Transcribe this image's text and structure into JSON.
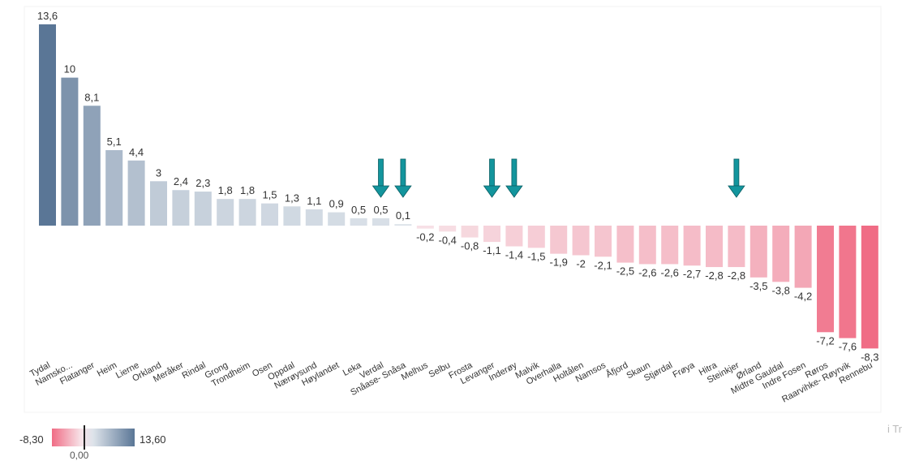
{
  "chart_data": {
    "type": "bar",
    "categories": [
      "Tydal",
      "Namsko...",
      "Flatanger",
      "Heim",
      "Lierne",
      "Orkland",
      "Meråker",
      "Rindal",
      "Grong",
      "Trondheim",
      "Osen",
      "Oppdal",
      "Nærøysund",
      "Høylandet",
      "Leka",
      "Verdal",
      "Snåase- Snåsa",
      "Melhus",
      "Selbu",
      "Frosta",
      "Levanger",
      "Inderøy",
      "Malvik",
      "Overhalla",
      "Holtålen",
      "Namsos",
      "Åfjord",
      "Skaun",
      "Stjørdal",
      "Frøya",
      "Hitra",
      "Steinkjer",
      "Ørland",
      "Midtre Gauldal",
      "Indre Fosen",
      "Røros",
      "Raarvihke- Røyrvik",
      "Rennebu"
    ],
    "values": [
      13.6,
      10,
      8.1,
      5.1,
      4.4,
      3,
      2.4,
      2.3,
      1.8,
      1.8,
      1.5,
      1.3,
      1.1,
      0.9,
      0.5,
      0.5,
      0.1,
      -0.2,
      -0.4,
      -0.8,
      -1.1,
      -1.4,
      -1.5,
      -1.9,
      -2,
      -2.1,
      -2.5,
      -2.6,
      -2.6,
      -2.7,
      -2.8,
      -2.8,
      -3.5,
      -3.8,
      -4.2,
      -7.2,
      -7.6,
      -8.3
    ],
    "value_labels": [
      "13,6",
      "10",
      "8,1",
      "5,1",
      "4,4",
      "3",
      "2,4",
      "2,3",
      "1,8",
      "1,8",
      "1,5",
      "1,3",
      "1,1",
      "0,9",
      "0,5",
      "0,5",
      "0,1",
      "-0,2",
      "-0,4",
      "-0,8",
      "-1,1",
      "-1,4",
      "-1,5",
      "-1,9",
      "-2",
      "-2,1",
      "-2,5",
      "-2,6",
      "-2,6",
      "-2,7",
      "-2,8",
      "-2,8",
      "-3,5",
      "-3,8",
      "-4,2",
      "-7,2",
      "-7,6",
      "-8,3"
    ],
    "highlighted_categories": [
      "Verdal",
      "Snåase- Snåsa",
      "Levanger",
      "Inderøy",
      "Steinkjer"
    ],
    "ylim": [
      -8.3,
      13.6
    ],
    "grid": false,
    "legend_position": "bottom-left",
    "colors": {
      "max": "#5a7696",
      "mid_positive": "#dde3ea",
      "mid_negative": "#f7e3e8",
      "min": "#f06c85",
      "arrow": "#13959d"
    }
  },
  "legend": {
    "min_label": "-8,30",
    "max_label": "13,60",
    "zero_label": "0,00"
  },
  "edge_text": "i Tr"
}
